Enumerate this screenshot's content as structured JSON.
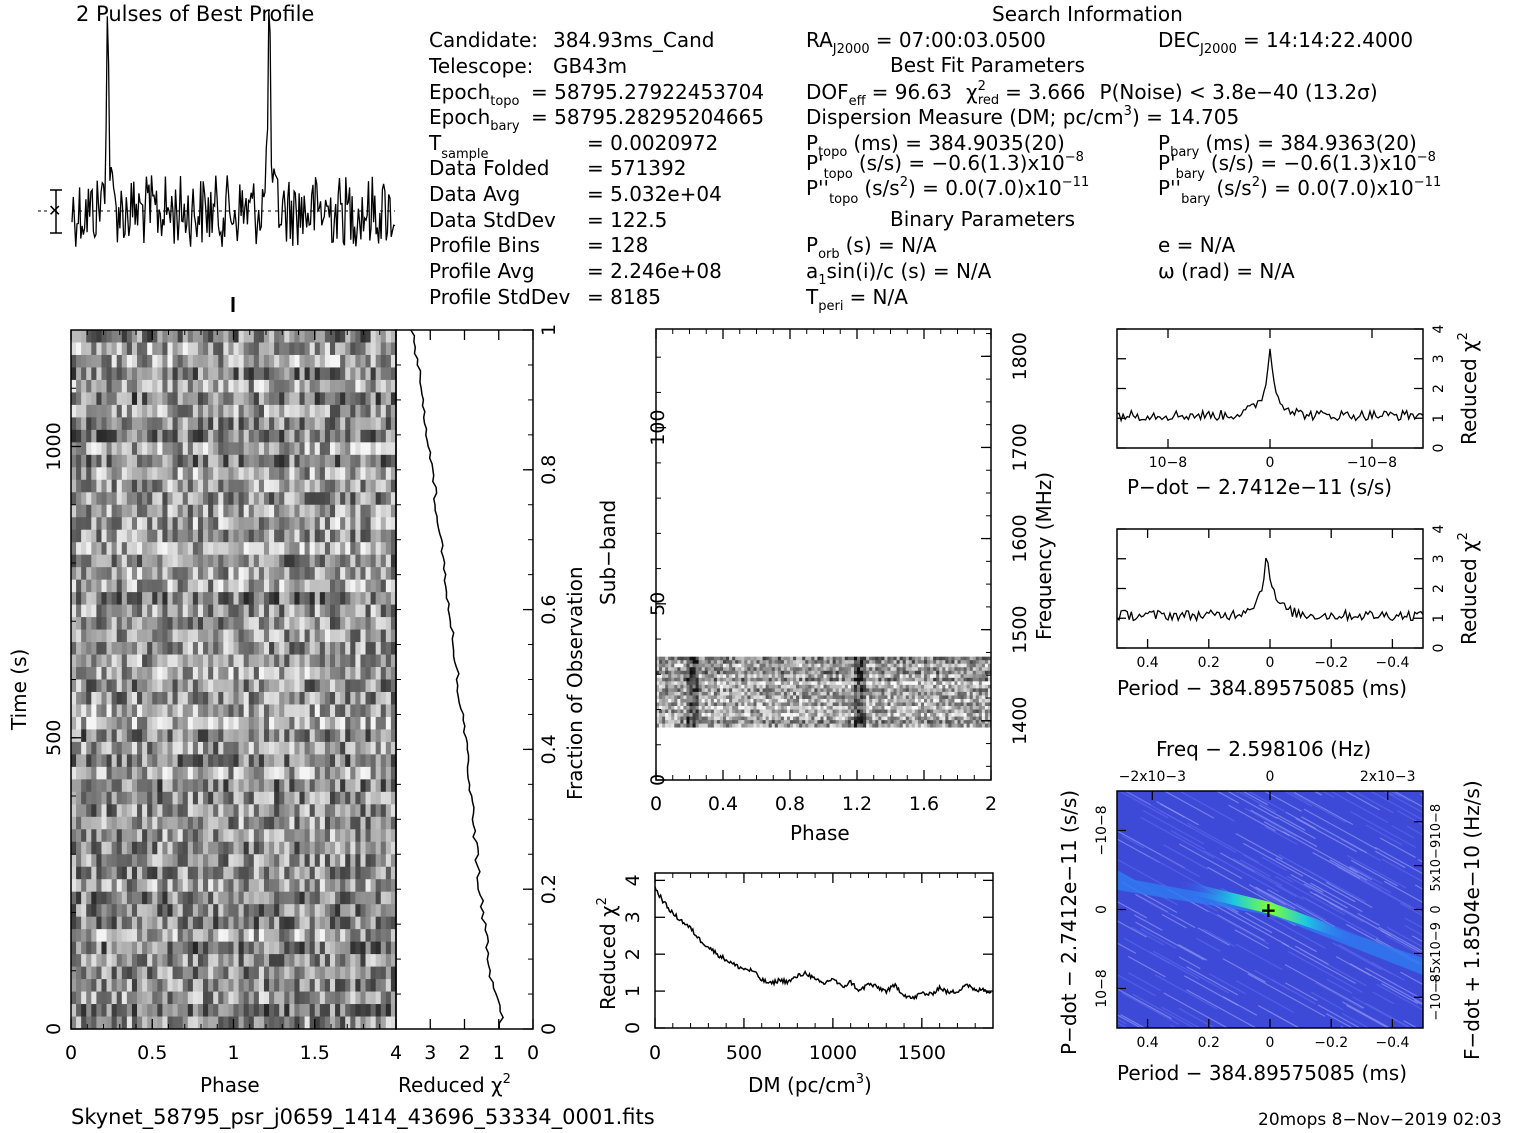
{
  "profile": {
    "title": "2 Pulses of Best Profile"
  },
  "info": {
    "header": "Search Information",
    "candidate": {
      "label": "Candidate:",
      "value": "384.93ms_Cand"
    },
    "telescope": {
      "label": "Telescope:",
      "value": "GB43m"
    },
    "epoch_topo": {
      "label": "Epoch",
      "sub": "topo",
      "value": "= 58795.27922453704"
    },
    "epoch_bary": {
      "label": "Epoch",
      "sub": "bary",
      "value": "= 58795.28295204665"
    },
    "t_sample": {
      "label": "T",
      "sub": "sample",
      "value": "=   0.0020972"
    },
    "data_folded": {
      "label": "Data Folded",
      "value": "=   571392"
    },
    "data_avg": {
      "label": "Data Avg",
      "value": "=   5.032e+04"
    },
    "data_stddev": {
      "label": "Data StdDev",
      "value": "=   122.5"
    },
    "profile_bins": {
      "label": "Profile Bins",
      "value": "=   128"
    },
    "profile_avg": {
      "label": "Profile Avg",
      "value": "=   2.246e+08"
    },
    "profile_stddev": {
      "label": "Profile StdDev",
      "value": "=   8185"
    },
    "ra": {
      "label": "RA",
      "sub": "J2000",
      "value": "= 07:00:03.0500"
    },
    "dec": {
      "label": "DEC",
      "sub": "J2000",
      "value": "= 14:14:22.4000"
    },
    "best_fit_header": "Best Fit Parameters",
    "dof_label": "DOF",
    "dof_sub": "eff",
    "dof_value": "= 96.63",
    "chi_label": "χ",
    "chi_sup": "2",
    "chi_sub": "red",
    "chi_value": "= 3.666",
    "pnoise": "P(Noise) < 3.8e−40   (13.2σ)",
    "dm_line": "Dispersion Measure (DM; pc/cm",
    "dm_sup": "3",
    "dm_value": ") = 14.705",
    "p_topo": {
      "label": "P",
      "sub": "topo",
      "value": "(ms) =   384.9035(20)"
    },
    "p_bary": {
      "label": "P",
      "sub": "bary",
      "value": "(ms) =   384.9363(20)"
    },
    "pd_topo": {
      "label": "P'",
      "sub": "topo",
      "value": "(s/s) = −0.6(1.3)x10",
      "exp": "−8"
    },
    "pd_bary": {
      "label": "P'",
      "sub": "bary",
      "value": "(s/s) = −0.6(1.3)x10",
      "exp": "−8"
    },
    "pdd_topo": {
      "label": "P''",
      "sub": "topo",
      "value": "(s/s",
      "sup": "2",
      "value2": ") = 0.0(7.0)x10",
      "exp": "−11"
    },
    "pdd_bary": {
      "label": "P''",
      "sub": "bary",
      "value": "(s/s",
      "sup": "2",
      "value2": ") = 0.0(7.0)x10",
      "exp": "−11"
    },
    "binary_header": "Binary Parameters",
    "porb": {
      "label": "P",
      "sub": "orb",
      "value": "(s) = N/A"
    },
    "asini": {
      "label": "a",
      "sub": "1",
      "value": "sin(i)/c (s) = N/A"
    },
    "tperi": {
      "label": "T",
      "sub": "peri",
      "value": "= N/A"
    },
    "ecc": "e = N/A",
    "omega": "ω (rad) = N/A"
  },
  "footer": {
    "filename": "Skynet_58795_psr_j0659_1414_43696_53334_0001.fits",
    "stamp": "20mops   8−Nov−2019 02:03"
  },
  "chart_data": [
    {
      "type": "line",
      "name": "profile",
      "title": "2 Pulses of Best Profile",
      "x_range": [
        0,
        2
      ],
      "pulse_peaks_phase": [
        0.22,
        1.22
      ],
      "peak_height_rel": 1.0,
      "baseline_rel": 0.22
    },
    {
      "type": "heatmap",
      "name": "time-vs-phase",
      "xlabel": "Phase",
      "ylabel": "Time (s)",
      "xlim": [
        0,
        2
      ],
      "ylim": [
        0,
        1200
      ],
      "x_ticks": [
        "0",
        "0.5",
        "1",
        "1.5"
      ],
      "y_ticks": [
        "0",
        "500",
        "1000"
      ],
      "colormap": "grayscale"
    },
    {
      "type": "line",
      "name": "time-reduced-chi2",
      "xlabel": "Reduced χ2",
      "ylabel": "Fraction of Observation",
      "xlim": [
        4,
        0
      ],
      "ylim": [
        0,
        1
      ],
      "x_ticks": [
        "4",
        "3",
        "2",
        "1",
        "0"
      ],
      "y_ticks": [
        "0",
        "0.2",
        "0.4",
        "0.6",
        "0.8",
        "1"
      ],
      "points": [
        [
          0.95,
          0.0
        ],
        [
          0.9,
          0.02
        ],
        [
          1.05,
          0.04
        ],
        [
          1.2,
          0.07
        ],
        [
          1.3,
          0.1
        ],
        [
          1.4,
          0.14
        ],
        [
          1.5,
          0.18
        ],
        [
          1.6,
          0.22
        ],
        [
          1.7,
          0.28
        ],
        [
          1.8,
          0.34
        ],
        [
          1.95,
          0.4
        ],
        [
          2.1,
          0.46
        ],
        [
          2.25,
          0.52
        ],
        [
          2.4,
          0.58
        ],
        [
          2.55,
          0.64
        ],
        [
          2.7,
          0.7
        ],
        [
          2.85,
          0.76
        ],
        [
          3.0,
          0.82
        ],
        [
          3.15,
          0.88
        ],
        [
          3.3,
          0.93
        ],
        [
          3.45,
          0.97
        ],
        [
          3.55,
          1.0
        ]
      ]
    },
    {
      "type": "heatmap",
      "name": "subband-vs-phase",
      "xlabel": "Phase",
      "ylabel": "Sub−band",
      "ylabel_right": "Frequency (MHz)",
      "xlim": [
        0,
        2
      ],
      "ylim": [
        0,
        128
      ],
      "x_ticks": [
        "0",
        "0.4",
        "0.8",
        "1.2",
        "1.6",
        "2"
      ],
      "y_ticks": [
        "0",
        "50",
        "100"
      ],
      "y2_ticks": [
        "1400",
        "1500",
        "1600",
        "1700",
        "1800"
      ],
      "data_band_subbands": [
        15,
        35
      ],
      "pulse_phase": [
        0.22,
        1.22
      ]
    },
    {
      "type": "line",
      "name": "dm-chi2",
      "xlabel": "DM (pc/cm3)",
      "ylabel": "Reduced χ2",
      "xlim": [
        0,
        1900
      ],
      "ylim": [
        0,
        4.2
      ],
      "x_ticks": [
        "0",
        "500",
        "1000",
        "1500"
      ],
      "y_ticks": [
        "0",
        "1",
        "2",
        "3",
        "4"
      ],
      "points": [
        [
          0,
          3.8
        ],
        [
          50,
          3.4
        ],
        [
          100,
          3.1
        ],
        [
          150,
          2.9
        ],
        [
          200,
          2.7
        ],
        [
          250,
          2.4
        ],
        [
          300,
          2.2
        ],
        [
          350,
          2.0
        ],
        [
          400,
          1.85
        ],
        [
          450,
          1.7
        ],
        [
          500,
          1.6
        ],
        [
          550,
          1.55
        ],
        [
          600,
          1.3
        ],
        [
          650,
          1.2
        ],
        [
          700,
          1.3
        ],
        [
          750,
          1.25
        ],
        [
          800,
          1.4
        ],
        [
          850,
          1.5
        ],
        [
          900,
          1.3
        ],
        [
          950,
          1.2
        ],
        [
          1000,
          1.35
        ],
        [
          1050,
          1.1
        ],
        [
          1100,
          1.25
        ],
        [
          1150,
          1.0
        ],
        [
          1200,
          1.2
        ],
        [
          1250,
          1.1
        ],
        [
          1300,
          1.0
        ],
        [
          1350,
          1.15
        ],
        [
          1400,
          0.9
        ],
        [
          1450,
          0.8
        ],
        [
          1500,
          0.95
        ],
        [
          1550,
          0.9
        ],
        [
          1600,
          1.1
        ],
        [
          1650,
          0.95
        ],
        [
          1700,
          1.0
        ],
        [
          1750,
          1.2
        ],
        [
          1800,
          1.0
        ],
        [
          1850,
          1.05
        ],
        [
          1890,
          0.95
        ]
      ]
    },
    {
      "type": "line",
      "name": "pdot-chi2",
      "xlabel": "P−dot − 2.7412e−11 (s/s)",
      "ylabel": "Reduced χ2",
      "xlim": [
        1.5e-08,
        -1.5e-08
      ],
      "ylim": [
        0,
        4
      ],
      "x_ticks": [
        "10−8",
        "0",
        "−10−8"
      ],
      "y_ticks": [
        "0",
        "1",
        "2",
        "3",
        "4"
      ],
      "peak": [
        0,
        3.6
      ],
      "baseline": 1.1
    },
    {
      "type": "line",
      "name": "period-chi2",
      "xlabel": "Period − 384.89575085 (ms)",
      "ylabel": "Reduced χ2",
      "xlim": [
        0.5,
        -0.5
      ],
      "ylim": [
        0,
        4
      ],
      "x_ticks": [
        "0.4",
        "0.2",
        "0",
        "−0.2",
        "−0.4"
      ],
      "y_ticks": [
        "0",
        "1",
        "2",
        "3",
        "4"
      ],
      "peak": [
        0.01,
        3.6
      ],
      "baseline": 1.1
    },
    {
      "type": "heatmap",
      "name": "pdot-vs-period",
      "title": "Freq − 2.598106 (Hz)",
      "xlabel": "Period − 384.89575085 (ms)",
      "ylabel": "P−dot − 2.7412e−11 (s/s)",
      "ylabel_right": "F−dot + 1.8504e−10 (Hz/s)",
      "x_ticks": [
        "0.4",
        "0.2",
        "0",
        "−0.2",
        "−0.4"
      ],
      "top_ticks": [
        "−2x10−3",
        "0",
        "2x10−3"
      ],
      "y_ticks": [
        "−10−8",
        "0",
        "10−8"
      ],
      "y2_ticks": [
        "10−8",
        "5x10−9",
        "0",
        "−5x10−9",
        "−10−8"
      ],
      "best": [
        0,
        0
      ],
      "colormap": "rainbow"
    }
  ]
}
